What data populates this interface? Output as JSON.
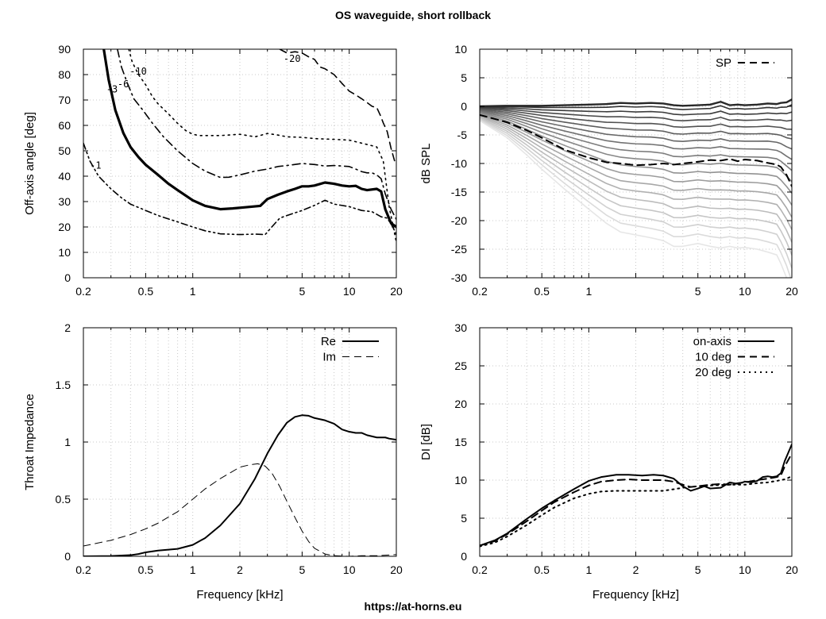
{
  "title": "OS waveguide, short rollback",
  "footer": "https://at-horns.eu",
  "chart_data": [
    {
      "id": "contour",
      "type": "line",
      "title": "",
      "xlabel": "",
      "ylabel": "Off-axis angle [deg]",
      "xscale": "log",
      "xlim": [
        0.2,
        20
      ],
      "ylim": [
        0,
        90
      ],
      "xticks": [
        0.2,
        0.5,
        1,
        2,
        5,
        10,
        20
      ],
      "xtick_labels": [
        "0.2",
        "0.5",
        "1",
        "",
        "5",
        "10",
        "20"
      ],
      "yticks": [
        0,
        10,
        20,
        30,
        40,
        50,
        60,
        70,
        80,
        90
      ],
      "ytick_labels": [
        "0",
        "10",
        "20",
        "30",
        "40",
        "50",
        "60",
        "70",
        "80",
        "90"
      ],
      "grid": true,
      "series": [
        {
          "name": "-1",
          "style": "dashdotdot",
          "x": [
            0.2,
            0.22,
            0.25,
            0.3,
            0.35,
            0.4,
            0.5,
            0.6,
            0.8,
            1.0,
            1.2,
            1.5,
            2.0,
            2.5,
            2.9,
            3.2,
            3.6,
            4.0,
            5.0,
            6.0,
            7.0,
            8.0,
            10.0,
            12.0,
            14.0,
            16.0,
            17.5,
            19.0,
            20.0
          ],
          "y": [
            53,
            46,
            40,
            35,
            31.5,
            29,
            26.5,
            24.5,
            22,
            20,
            18.5,
            17.3,
            17,
            17.2,
            17,
            20,
            23.5,
            24.5,
            26.5,
            28.5,
            30.5,
            29,
            28,
            26.5,
            26,
            24,
            23.5,
            20,
            17
          ]
        },
        {
          "name": "-3",
          "style": "solid",
          "width": 3.2,
          "x": [
            0.27,
            0.29,
            0.32,
            0.36,
            0.4,
            0.45,
            0.5,
            0.6,
            0.7,
            0.8,
            1.0,
            1.2,
            1.5,
            1.8,
            2.2,
            2.7,
            3.0,
            3.5,
            4.0,
            4.5,
            5.0,
            5.5,
            6.0,
            7.0,
            8.0,
            9.0,
            10.0,
            11.0,
            12.0,
            13.0,
            15.0,
            16.0,
            17.0,
            18.5,
            20.0
          ],
          "y": [
            90,
            78,
            66,
            57,
            51.5,
            47.5,
            44.5,
            40.5,
            37,
            34.5,
            30.5,
            28.3,
            27,
            27.3,
            27.8,
            28.3,
            31,
            32.7,
            34,
            35,
            36,
            36,
            36.3,
            37.5,
            37,
            36.3,
            36,
            36.2,
            35,
            34.5,
            35,
            34,
            27,
            21.5,
            20
          ]
        },
        {
          "name": "-6",
          "style": "dashdot",
          "x": [
            0.33,
            0.35,
            0.38,
            0.42,
            0.48,
            0.55,
            0.65,
            0.8,
            1.0,
            1.2,
            1.5,
            1.7,
            2.0,
            2.5,
            3.0,
            3.5,
            4.0,
            5.0,
            6.0,
            7.0,
            8.0,
            10.0,
            11.0,
            12.0,
            13.0,
            14.0,
            15.0,
            16.0,
            17.0,
            18.5,
            20.0
          ],
          "y": [
            90,
            83,
            77,
            70.5,
            66,
            61,
            55.5,
            50,
            45,
            42,
            39.5,
            39.6,
            40.5,
            42,
            42.8,
            43.8,
            44.2,
            45,
            44.6,
            44,
            44.2,
            43.8,
            42.8,
            41.8,
            41.3,
            41.3,
            40.5,
            39,
            33,
            27,
            23
          ]
        },
        {
          "name": "-10",
          "style": "dotted",
          "x": [
            0.39,
            0.41,
            0.45,
            0.5,
            0.55,
            0.6,
            0.7,
            0.8,
            0.9,
            1.0,
            1.1,
            1.3,
            1.5,
            2.0,
            2.5,
            3.0,
            3.5,
            4.0,
            5.0,
            6.0,
            8.0,
            10.0,
            12.0,
            14.0,
            15.0,
            16.5,
            18.0,
            20.0
          ],
          "y": [
            90,
            85,
            80,
            76,
            71.5,
            68.5,
            64.5,
            60.8,
            58,
            56.5,
            56,
            56,
            56,
            56.5,
            55.5,
            56.8,
            56.2,
            55.5,
            55.3,
            54.8,
            54.5,
            54.2,
            53,
            52,
            51.5,
            46,
            28,
            14
          ]
        },
        {
          "name": "-20",
          "style": "dashed",
          "x": [
            3.6,
            4.0,
            4.5,
            5.0,
            5.5,
            6.0,
            6.5,
            7.0,
            8.0,
            9.0,
            10.0,
            11.0,
            12.0,
            13.0,
            14.0,
            15.0,
            15.8,
            16.5,
            17.5,
            18.5,
            19.5,
            20.0
          ],
          "y": [
            90,
            88.5,
            89,
            88.5,
            87,
            86,
            83,
            82.3,
            80,
            76.5,
            73.5,
            72,
            70.5,
            69,
            67.5,
            67,
            64,
            61,
            57.5,
            51,
            46,
            45
          ]
        }
      ],
      "labels": [
        {
          "text": "-1",
          "x": 0.22,
          "y": 43
        },
        {
          "text": "-3",
          "x": 0.28,
          "y": 73
        },
        {
          "text": "-6",
          "x": 0.33,
          "y": 75
        },
        {
          "text": "-10",
          "x": 0.395,
          "y": 80
        },
        {
          "text": "-20",
          "x": 3.8,
          "y": 85
        }
      ]
    },
    {
      "id": "spl",
      "type": "line",
      "title": "",
      "xlabel": "",
      "ylabel": "dB SPL",
      "xscale": "log",
      "xlim": [
        0.2,
        20
      ],
      "ylim": [
        -30,
        10
      ],
      "xticks": [
        0.2,
        0.5,
        1,
        2,
        5,
        10,
        20
      ],
      "xtick_labels": [
        "0.2",
        "0.5",
        "1",
        "",
        "5",
        "10",
        "20"
      ],
      "yticks": [
        -30,
        -25,
        -20,
        -15,
        -10,
        -5,
        0,
        5,
        10
      ],
      "ytick_labels": [
        "-30",
        "-25",
        "-20",
        "-15",
        "-10",
        "-5",
        "0",
        "5",
        "10"
      ],
      "grid": true,
      "legend": {
        "entries": [
          "SP"
        ],
        "placement": "top-right"
      },
      "sp": {
        "name": "SP",
        "x": [
          0.2,
          0.3,
          0.4,
          0.5,
          0.7,
          1.0,
          1.3,
          1.6,
          2.0,
          2.5,
          3.0,
          3.5,
          4.0,
          5.0,
          6.0,
          7.0,
          8.0,
          9.0,
          10.0,
          12.0,
          14.0,
          16.0,
          17.0,
          18.5,
          20.0
        ],
        "y": [
          -1.5,
          -2.8,
          -4.2,
          -5.5,
          -7.6,
          -9.0,
          -9.8,
          -10.0,
          -10.3,
          -10.2,
          -10.0,
          -10.2,
          -10.0,
          -9.7,
          -9.4,
          -9.5,
          -9.2,
          -9.6,
          -9.3,
          -9.5,
          -9.9,
          -10.2,
          -10.6,
          -12.0,
          -14.0
        ]
      },
      "fan": {
        "count": 18,
        "x": [
          0.2,
          0.3,
          0.4,
          0.5,
          0.7,
          1.0,
          1.3,
          1.6,
          2.0,
          2.5,
          3.0,
          3.5,
          4.0,
          5.0,
          6.0,
          7.0,
          8.0,
          9.0,
          10.0,
          12.0,
          14.0,
          16.0,
          17.0,
          18.5,
          20.0
        ],
        "on_axis": [
          0,
          0.1,
          0.1,
          0.1,
          0.2,
          0.3,
          0.4,
          0.6,
          0.5,
          0.6,
          0.5,
          0.2,
          0.1,
          0.2,
          0.3,
          0.8,
          0.2,
          0.3,
          0.2,
          0.3,
          0.5,
          0.4,
          0.6,
          0.7,
          1.2
        ],
        "edge": [
          -2.5,
          -5.5,
          -8.5,
          -11,
          -14.5,
          -18,
          -20.5,
          -22,
          -22.5,
          -23,
          -23.5,
          -24.5,
          -24.5,
          -24,
          -24.5,
          -24.8,
          -24.5,
          -24.8,
          -24.7,
          -25,
          -25.5,
          -26,
          -27.5,
          -30,
          -33
        ]
      }
    },
    {
      "id": "impedance",
      "type": "line",
      "title": "",
      "xlabel": "Frequency [kHz]",
      "ylabel": "Throat Impedance",
      "xscale": "log",
      "xlim": [
        0.2,
        20
      ],
      "ylim": [
        0,
        2
      ],
      "xticks": [
        0.2,
        0.5,
        1,
        2,
        5,
        10,
        20
      ],
      "xtick_labels": [
        "0.2",
        "0.5",
        "1",
        "2",
        "5",
        "10",
        "20"
      ],
      "yticks": [
        0,
        0.5,
        1,
        1.5,
        2
      ],
      "ytick_labels": [
        "0",
        "0.5",
        "1",
        "1.5",
        "2"
      ],
      "grid": true,
      "legend": {
        "entries": [
          "Re",
          "Im"
        ],
        "placement": "top-right"
      },
      "series": [
        {
          "name": "Re",
          "style": "solid",
          "width": 2,
          "x": [
            0.2,
            0.3,
            0.4,
            0.45,
            0.5,
            0.6,
            0.8,
            1.0,
            1.2,
            1.5,
            2.0,
            2.5,
            3.0,
            3.5,
            4.0,
            4.5,
            5.0,
            5.5,
            6.0,
            7.0,
            8.0,
            9.0,
            10.0,
            11.0,
            12.0,
            13.0,
            15.0,
            17.0,
            18.0,
            20.0
          ],
          "y": [
            0,
            0.003,
            0.01,
            0.02,
            0.035,
            0.05,
            0.065,
            0.1,
            0.16,
            0.27,
            0.46,
            0.68,
            0.9,
            1.06,
            1.17,
            1.22,
            1.235,
            1.23,
            1.21,
            1.19,
            1.16,
            1.11,
            1.09,
            1.08,
            1.08,
            1.06,
            1.04,
            1.04,
            1.03,
            1.02
          ]
        },
        {
          "name": "Im",
          "style": "dashed",
          "width": 1,
          "x": [
            0.2,
            0.3,
            0.4,
            0.5,
            0.6,
            0.8,
            1.0,
            1.2,
            1.5,
            2.0,
            2.3,
            2.6,
            2.9,
            3.2,
            3.6,
            4.0,
            4.5,
            5.0,
            5.5,
            6.0,
            7.0,
            8.0,
            10.0,
            12.0,
            15.0,
            20.0
          ],
          "y": [
            0.09,
            0.14,
            0.19,
            0.24,
            0.29,
            0.39,
            0.5,
            0.59,
            0.68,
            0.78,
            0.8,
            0.81,
            0.79,
            0.73,
            0.61,
            0.48,
            0.34,
            0.22,
            0.13,
            0.07,
            0.02,
            0.005,
            0.0,
            0.005,
            0.005,
            0.015
          ]
        }
      ]
    },
    {
      "id": "di",
      "type": "line",
      "title": "",
      "xlabel": "Frequency [kHz]",
      "ylabel": "DI [dB]",
      "xscale": "log",
      "xlim": [
        0.2,
        20
      ],
      "ylim": [
        0,
        30
      ],
      "xticks": [
        0.2,
        0.5,
        1,
        2,
        5,
        10,
        20
      ],
      "xtick_labels": [
        "0.2",
        "0.5",
        "1",
        "2",
        "5",
        "10",
        "20"
      ],
      "yticks": [
        0,
        5,
        10,
        15,
        20,
        25,
        30
      ],
      "ytick_labels": [
        "0",
        "5",
        "10",
        "15",
        "20",
        "25",
        "30"
      ],
      "grid": true,
      "legend": {
        "entries": [
          "on-axis",
          "10 deg",
          "20 deg"
        ],
        "placement": "top-right"
      },
      "series": [
        {
          "name": "on-axis",
          "style": "solid",
          "width": 2,
          "x": [
            0.2,
            0.25,
            0.3,
            0.4,
            0.5,
            0.6,
            0.8,
            1.0,
            1.2,
            1.5,
            1.8,
            2.2,
            2.6,
            3.0,
            3.5,
            4.0,
            4.5,
            5.0,
            5.5,
            6.0,
            7.0,
            8.0,
            9.0,
            10.0,
            11.0,
            12.0,
            13.0,
            14.0,
            15.0,
            16.0,
            17.0,
            18.0,
            20.0
          ],
          "y": [
            1.4,
            2.1,
            3,
            4.9,
            6.3,
            7.3,
            8.8,
            9.9,
            10.4,
            10.7,
            10.7,
            10.6,
            10.7,
            10.6,
            10.2,
            9.2,
            8.6,
            8.9,
            9.2,
            8.9,
            9.0,
            9.7,
            9.5,
            9.8,
            9.7,
            9.9,
            10.4,
            10.5,
            10.4,
            10.5,
            10.9,
            12.5,
            14.7
          ]
        },
        {
          "name": "10 deg",
          "style": "dashed",
          "width": 2,
          "x": [
            0.2,
            0.25,
            0.3,
            0.4,
            0.5,
            0.6,
            0.8,
            1.0,
            1.2,
            1.5,
            1.8,
            2.2,
            2.6,
            3.0,
            3.5,
            4.0,
            4.5,
            5.0,
            6.0,
            7.0,
            8.0,
            9.0,
            10.0,
            12.0,
            14.0,
            15.0,
            16.0,
            17.0,
            18.0,
            20.0
          ],
          "y": [
            1.4,
            2,
            2.9,
            4.6,
            6,
            7.1,
            8.4,
            9.3,
            9.8,
            10.0,
            10.1,
            10.0,
            10.0,
            10.0,
            9.8,
            9.4,
            9.1,
            9.2,
            9.4,
            9.5,
            9.4,
            9.6,
            9.7,
            10.0,
            10.2,
            10.3,
            10.4,
            10.6,
            11.8,
            13.5
          ]
        },
        {
          "name": "20 deg",
          "style": "dotted",
          "width": 2,
          "x": [
            0.2,
            0.25,
            0.3,
            0.4,
            0.5,
            0.6,
            0.8,
            1.0,
            1.2,
            1.5,
            2.0,
            2.5,
            3.0,
            3.5,
            4.0,
            5.0,
            6.0,
            8.0,
            10.0,
            12.0,
            14.0,
            16.0,
            18.0,
            20.0
          ],
          "y": [
            1.3,
            1.8,
            2.6,
            4.1,
            5.4,
            6.4,
            7.6,
            8.2,
            8.5,
            8.6,
            8.6,
            8.6,
            8.6,
            8.8,
            9.0,
            9.2,
            9.3,
            9.4,
            9.4,
            9.6,
            9.7,
            9.9,
            10.1,
            10.5
          ]
        }
      ]
    }
  ]
}
